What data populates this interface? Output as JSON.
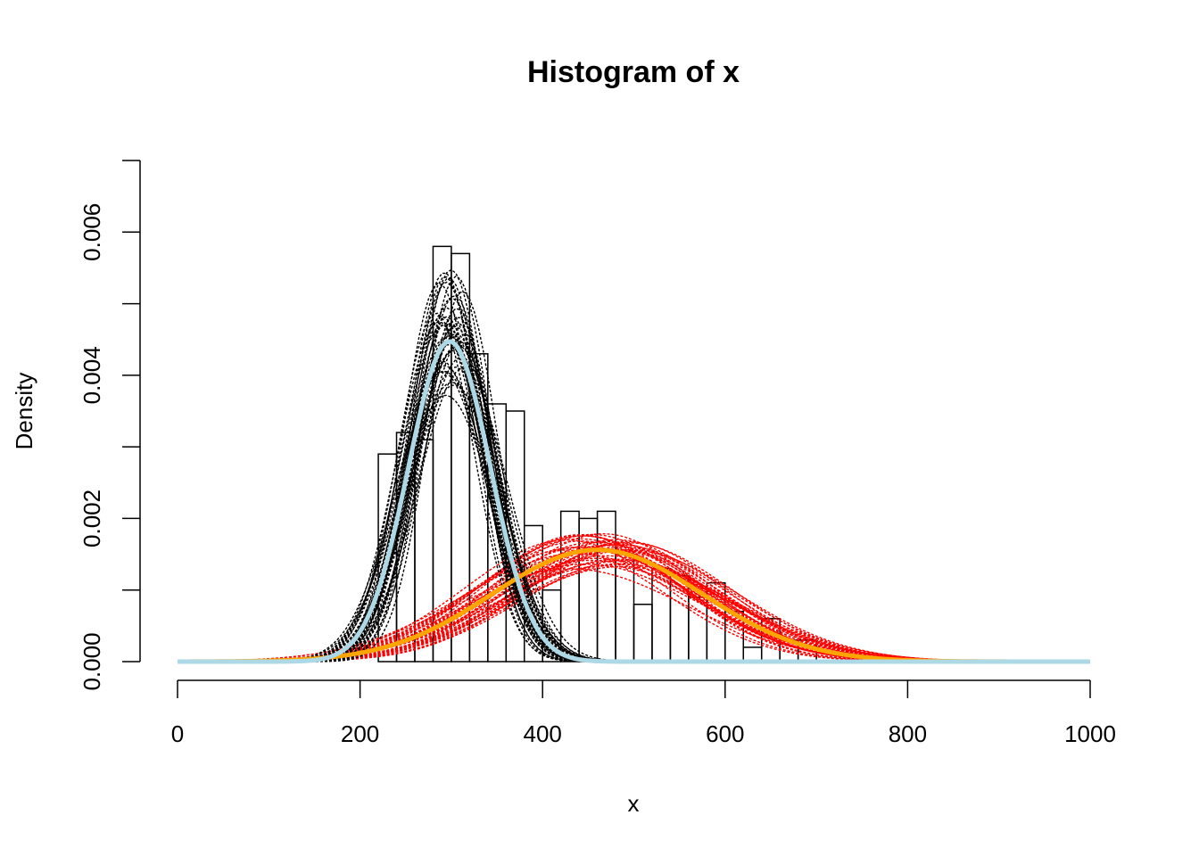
{
  "chart_data": {
    "type": "histogram",
    "title": "Histogram of x",
    "xlabel": "x",
    "ylabel": "Density",
    "xlim": [
      0,
      1000
    ],
    "ylim": [
      0,
      0.007
    ],
    "x_ticks": [
      0,
      200,
      400,
      600,
      800,
      1000
    ],
    "x_tick_labels": [
      "0",
      "200",
      "400",
      "600",
      "800",
      "1000"
    ],
    "y_ticks": [
      0,
      0.001,
      0.002,
      0.003,
      0.004,
      0.005,
      0.006,
      0.007
    ],
    "y_tick_labels": [
      "0.000",
      "",
      "0.002",
      "",
      "0.004",
      "",
      "0.006",
      ""
    ],
    "grid": false,
    "histogram": {
      "bin_width": 20,
      "bin_starts": [
        220,
        240,
        260,
        280,
        300,
        320,
        340,
        360,
        380,
        400,
        420,
        440,
        460,
        480,
        500,
        520,
        540,
        560,
        580,
        600,
        620,
        640,
        660,
        680
      ],
      "density": [
        0.0029,
        0.0032,
        0.0031,
        0.0058,
        0.0057,
        0.0043,
        0.0036,
        0.0035,
        0.0019,
        0.001,
        0.0021,
        0.002,
        0.0021,
        0.0015,
        0.0008,
        0.0013,
        0.0012,
        0.0009,
        0.0011,
        0.0007,
        0.0002,
        0.0006,
        0.0003,
        0.0003
      ]
    },
    "curves": {
      "component1_fit": {
        "mean": 298,
        "sd": 45,
        "weight": 0.505,
        "color": "#add8e6"
      },
      "component2_fit": {
        "mean": 460,
        "sd": 115,
        "weight": 0.45,
        "color": "#ffa500"
      },
      "component1_samples_color": "#000000",
      "component2_samples_color": "#ff0000",
      "sample_count": 40
    }
  }
}
